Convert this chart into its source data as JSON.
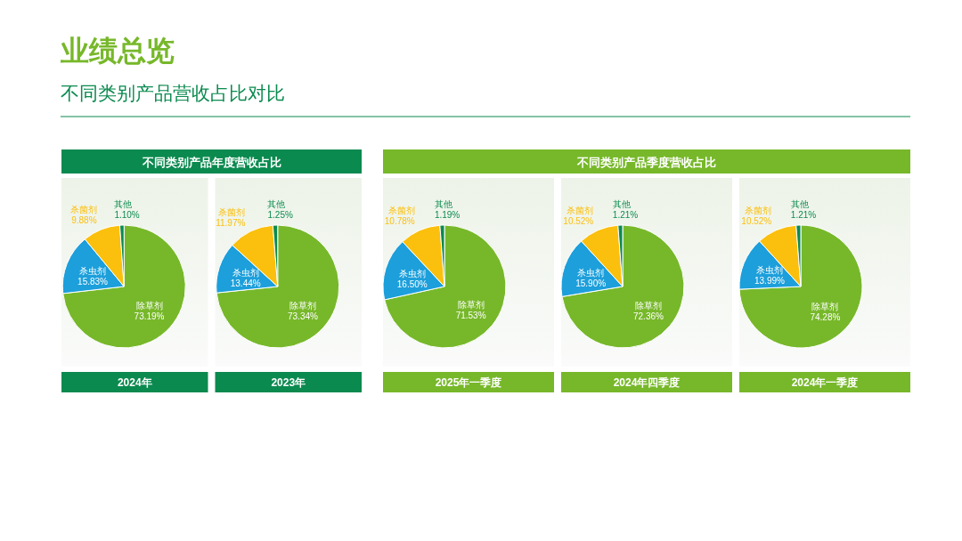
{
  "chart_data": [
    {
      "type": "pie",
      "title": "2024年",
      "subtitle": "不同类别产品年度营收占比",
      "annotations": [
        "业绩总览",
        "不同类别产品营收占比对比"
      ],
      "categories": [
        "除草剂",
        "杀虫剂",
        "杀菌剂",
        "其他"
      ],
      "values": [
        73.19,
        15.83,
        9.88,
        1.1
      ],
      "value_labels": [
        "73.19%",
        "15.83%",
        "9.88%",
        "1.10%"
      ],
      "colors": [
        "#77b82a",
        "#1c9fdb",
        "#fbbf0d",
        "#0b8a4f"
      ]
    },
    {
      "type": "pie",
      "title": "2023年",
      "categories": [
        "除草剂",
        "杀虫剂",
        "杀菌剂",
        "其他"
      ],
      "values": [
        73.34,
        13.44,
        11.97,
        1.25
      ],
      "value_labels": [
        "73.34%",
        "13.44%",
        "11.97%",
        "1.25%"
      ],
      "colors": [
        "#77b82a",
        "#1c9fdb",
        "#fbbf0d",
        "#0b8a4f"
      ]
    },
    {
      "type": "pie",
      "title": "2025年一季度",
      "categories": [
        "除草剂",
        "杀虫剂",
        "杀菌剂",
        "其他"
      ],
      "values": [
        71.53,
        16.5,
        10.78,
        1.19
      ],
      "value_labels": [
        "71.53%",
        "16.50%",
        "10.78%",
        "1.19%"
      ],
      "colors": [
        "#77b82a",
        "#1c9fdb",
        "#fbbf0d",
        "#0b8a4f"
      ]
    },
    {
      "type": "pie",
      "title": "2024年四季度",
      "subtitle": "不同类别产品季度营收占比",
      "categories": [
        "除草剂",
        "杀虫剂",
        "杀菌剂",
        "其他"
      ],
      "values": [
        72.36,
        15.9,
        10.52,
        1.21
      ],
      "value_labels": [
        "72.36%",
        "15.90%",
        "10.52%",
        "1.21%"
      ],
      "colors": [
        "#77b82a",
        "#1c9fdb",
        "#fbbf0d",
        "#0b8a4f"
      ]
    },
    {
      "type": "pie",
      "title": "2024年一季度",
      "categories": [
        "除草剂",
        "杀虫剂",
        "杀菌剂",
        "其他"
      ],
      "values": [
        74.28,
        13.99,
        10.52,
        1.21
      ],
      "value_labels": [
        "74.28%",
        "13.99%",
        "10.52%",
        "1.21%"
      ],
      "colors": [
        "#77b82a",
        "#1c9fdb",
        "#fbbf0d",
        "#0b8a4f"
      ]
    }
  ]
}
